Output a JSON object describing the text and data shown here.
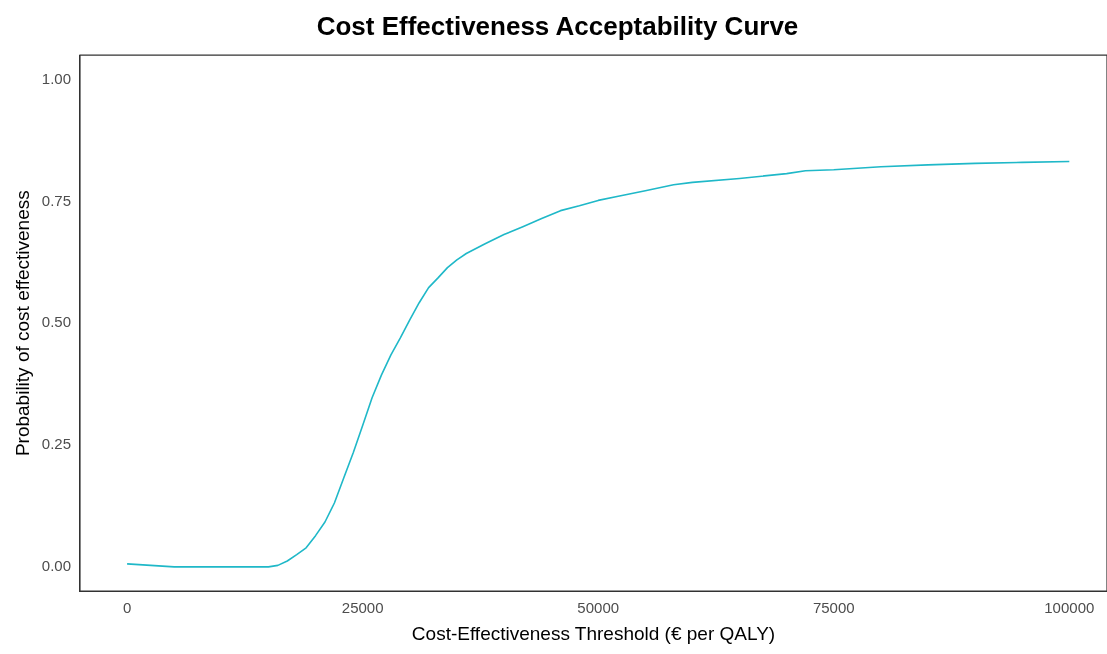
{
  "chart_data": {
    "type": "line",
    "title": "Cost Effectiveness Acceptability Curve",
    "xlabel": "Cost-Effectiveness Threshold (€ per QALY)",
    "ylabel": "Probability of cost effectiveness",
    "xlim": [
      -5000,
      104000
    ],
    "ylim": [
      -0.05,
      1.05
    ],
    "xticks": [
      0,
      25000,
      50000,
      75000,
      100000
    ],
    "yticks": [
      {
        "value": 0,
        "label": "0.00"
      },
      {
        "value": 0.25,
        "label": "0.25"
      },
      {
        "value": 0.5,
        "label": "0.50"
      },
      {
        "value": 0.75,
        "label": "0.75"
      },
      {
        "value": 1,
        "label": "1.00"
      }
    ],
    "grid": false,
    "legend": false,
    "marker": "none",
    "line_style": "solid",
    "x": [
      0,
      5000,
      15000,
      16000,
      17000,
      18000,
      19000,
      20000,
      21000,
      22000,
      23000,
      24000,
      25000,
      26000,
      27000,
      28000,
      29000,
      30000,
      31000,
      32000,
      33000,
      34000,
      35000,
      36000,
      38000,
      40000,
      42000,
      44000,
      46000,
      48000,
      50000,
      52000,
      55000,
      58000,
      60000,
      65000,
      70000,
      72000,
      75000,
      80000,
      85000,
      90000,
      95000,
      100000
    ],
    "series": [
      {
        "color": "#1fb8c8",
        "values": [
          0.006,
          0.0,
          0.0,
          0.003,
          0.012,
          0.025,
          0.039,
          0.064,
          0.092,
          0.131,
          0.183,
          0.234,
          0.29,
          0.347,
          0.394,
          0.435,
          0.47,
          0.507,
          0.542,
          0.573,
          0.593,
          0.614,
          0.63,
          0.643,
          0.663,
          0.682,
          0.698,
          0.715,
          0.731,
          0.741,
          0.752,
          0.76,
          0.772,
          0.784,
          0.789,
          0.797,
          0.807,
          0.813,
          0.815,
          0.821,
          0.825,
          0.828,
          0.83,
          0.832
        ]
      }
    ]
  }
}
